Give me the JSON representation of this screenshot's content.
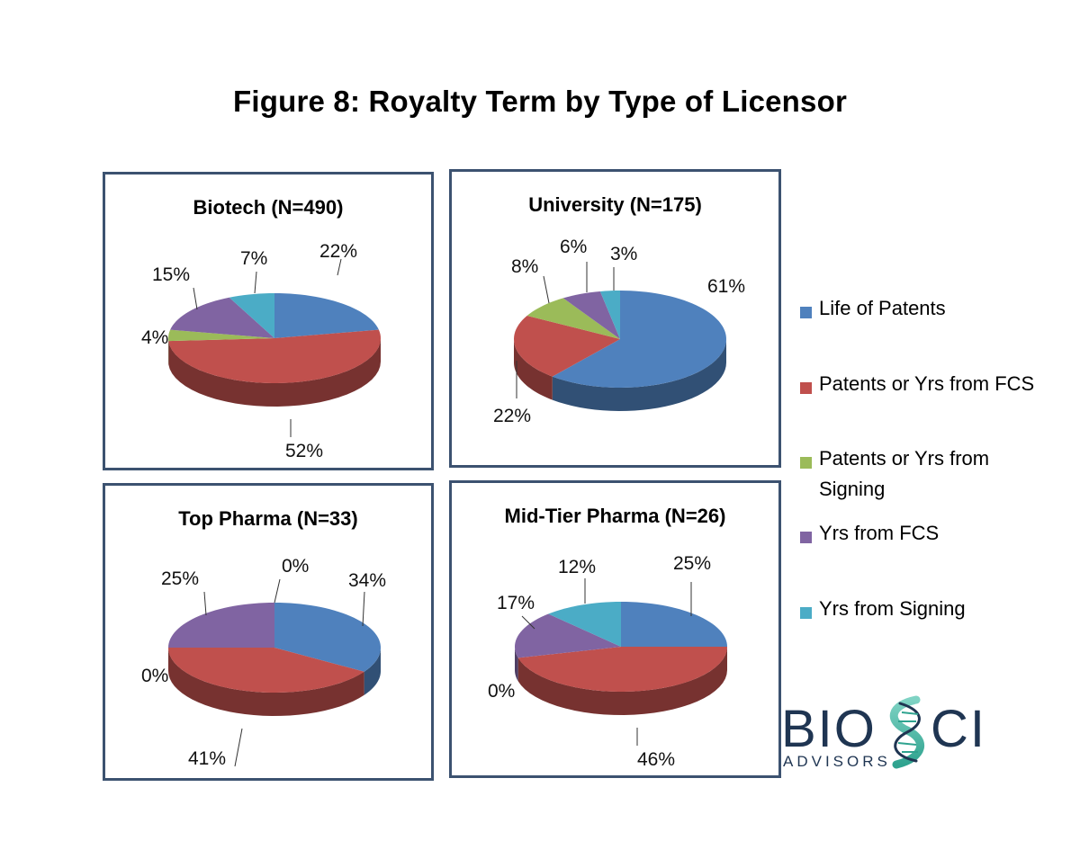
{
  "title": "Figure 8:  Royalty Term by Type of Licensor",
  "legend": {
    "items": [
      {
        "label": "Life of Patents",
        "color": "#4f81bd"
      },
      {
        "label": "Patents or Yrs from FCS",
        "color": "#c0504d"
      },
      {
        "label": "Patents or Yrs from Signing",
        "color": "#9bbb59"
      },
      {
        "label": "Yrs from FCS",
        "color": "#8064a2"
      },
      {
        "label": "Yrs from Signing",
        "color": "#4bacc6"
      }
    ]
  },
  "logo": {
    "text_main": "BIOSCI",
    "text_sub": "ADVISORS"
  },
  "chart_data": [
    {
      "type": "pie",
      "title": "Biotech (N=490)",
      "categories": [
        "Life of Patents",
        "Patents or Yrs from FCS",
        "Patents or Yrs from Signing",
        "Yrs from FCS",
        "Yrs from Signing"
      ],
      "values": [
        22,
        52,
        4,
        15,
        7
      ],
      "labels": [
        "22%",
        "52%",
        "4%",
        "15%",
        "7%"
      ]
    },
    {
      "type": "pie",
      "title": "University (N=175)",
      "categories": [
        "Life of Patents",
        "Patents or Yrs from FCS",
        "Patents or Yrs from Signing",
        "Yrs from FCS",
        "Yrs from Signing"
      ],
      "values": [
        61,
        22,
        8,
        6,
        3
      ],
      "labels": [
        "61%",
        "22%",
        "8%",
        "6%",
        "3%"
      ]
    },
    {
      "type": "pie",
      "title": "Top Pharma (N=33)",
      "categories": [
        "Life of Patents",
        "Patents or Yrs from FCS",
        "Patents or Yrs from Signing",
        "Yrs from FCS",
        "Yrs from Signing"
      ],
      "values": [
        34,
        41,
        0,
        25,
        0
      ],
      "labels": [
        "34%",
        "41%",
        "0%",
        "25%",
        "0%"
      ]
    },
    {
      "type": "pie",
      "title": "Mid-Tier Pharma (N=26)",
      "categories": [
        "Life of Patents",
        "Patents or Yrs from FCS",
        "Patents or Yrs from Signing",
        "Yrs from FCS",
        "Yrs from Signing"
      ],
      "values": [
        25,
        46,
        0,
        17,
        12
      ],
      "labels": [
        "25%",
        "46%",
        "0%",
        "17%",
        "12%"
      ]
    }
  ]
}
